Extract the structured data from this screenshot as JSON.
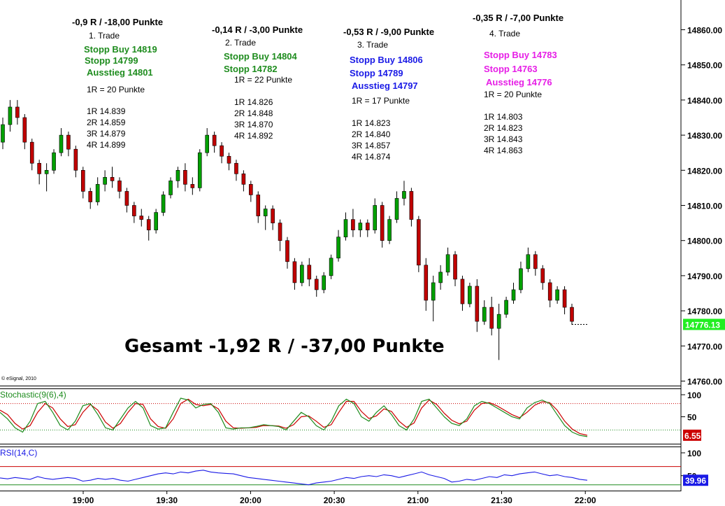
{
  "chart_data": {
    "type": "candlestick",
    "main": {
      "y_ticks": [
        "14860.00",
        "14850.00",
        "14840.00",
        "14830.00",
        "14820.00",
        "14810.00",
        "14800.00",
        "14790.00",
        "14780.00",
        "14770.00",
        "14760.00"
      ],
      "ylim": [
        14758,
        14868
      ],
      "last_price": "14776.13",
      "last_price_color": "#22ee22",
      "candles": [
        [
          14828,
          14835,
          14826,
          14833
        ],
        [
          14833,
          14840,
          14831,
          14838
        ],
        [
          14838,
          14840,
          14833,
          14835
        ],
        [
          14835,
          14836,
          14826,
          14828
        ],
        [
          14828,
          14829,
          14820,
          14822
        ],
        [
          14822,
          14823,
          14816,
          14819
        ],
        [
          14819,
          14822,
          14814,
          14820
        ],
        [
          14820,
          14826,
          14819,
          14825
        ],
        [
          14825,
          14832,
          14824,
          14830
        ],
        [
          14830,
          14831,
          14824,
          14826
        ],
        [
          14826,
          14827,
          14818,
          14820
        ],
        [
          14820,
          14821,
          14812,
          14814
        ],
        [
          14814,
          14815,
          14809,
          14811
        ],
        [
          14811,
          14818,
          14810,
          14816
        ],
        [
          14816,
          14820,
          14814,
          14818
        ],
        [
          14818,
          14821,
          14815,
          14817
        ],
        [
          14817,
          14818,
          14812,
          14814
        ],
        [
          14814,
          14815,
          14808,
          14810
        ],
        [
          14810,
          14811,
          14805,
          14807
        ],
        [
          14807,
          14809,
          14804,
          14806
        ],
        [
          14806,
          14807,
          14800,
          14803
        ],
        [
          14803,
          14809,
          14802,
          14808
        ],
        [
          14808,
          14814,
          14807,
          14813
        ],
        [
          14813,
          14818,
          14812,
          14817
        ],
        [
          14817,
          14821,
          14815,
          14820
        ],
        [
          14820,
          14822,
          14814,
          14816
        ],
        [
          14816,
          14818,
          14813,
          14815
        ],
        [
          14815,
          14826,
          14814,
          14825
        ],
        [
          14825,
          14832,
          14824,
          14830
        ],
        [
          14830,
          14831,
          14825,
          14827
        ],
        [
          14827,
          14828,
          14822,
          14824
        ],
        [
          14824,
          14825,
          14820,
          14822
        ],
        [
          14822,
          14823,
          14817,
          14819
        ],
        [
          14819,
          14820,
          14814,
          14816
        ],
        [
          14816,
          14817,
          14811,
          14813
        ],
        [
          14813,
          14814,
          14805,
          14807
        ],
        [
          14807,
          14810,
          14803,
          14809
        ],
        [
          14809,
          14810,
          14803,
          14805
        ],
        [
          14805,
          14806,
          14797,
          14800
        ],
        [
          14800,
          14801,
          14792,
          14794
        ],
        [
          14794,
          14795,
          14786,
          14788
        ],
        [
          14788,
          14794,
          14787,
          14793
        ],
        [
          14793,
          14795,
          14787,
          14789
        ],
        [
          14789,
          14790,
          14784,
          14786
        ],
        [
          14786,
          14791,
          14785,
          14790
        ],
        [
          14790,
          14796,
          14789,
          14795
        ],
        [
          14795,
          14803,
          14794,
          14801
        ],
        [
          14801,
          14808,
          14800,
          14806
        ],
        [
          14806,
          14809,
          14801,
          14803
        ],
        [
          14803,
          14806,
          14801,
          14805
        ],
        [
          14805,
          14806,
          14801,
          14803
        ],
        [
          14803,
          14812,
          14802,
          14810
        ],
        [
          14810,
          14811,
          14798,
          14800
        ],
        [
          14800,
          14807,
          14799,
          14806
        ],
        [
          14806,
          14814,
          14805,
          14812
        ],
        [
          14812,
          14817,
          14810,
          14814
        ],
        [
          14814,
          14815,
          14804,
          14806
        ],
        [
          14806,
          14807,
          14791,
          14793
        ],
        [
          14793,
          14795,
          14780,
          14783
        ],
        [
          14783,
          14790,
          14777,
          14788
        ],
        [
          14788,
          14793,
          14786,
          14791
        ],
        [
          14791,
          14798,
          14790,
          14796
        ],
        [
          14796,
          14797,
          14787,
          14789
        ],
        [
          14789,
          14790,
          14780,
          14782
        ],
        [
          14782,
          14788,
          14781,
          14787
        ],
        [
          14787,
          14789,
          14774,
          14777
        ],
        [
          14777,
          14783,
          14776,
          14781
        ],
        [
          14781,
          14784,
          14773,
          14775
        ],
        [
          14775,
          14782,
          14766,
          14779
        ],
        [
          14779,
          14784,
          14778,
          14783
        ],
        [
          14783,
          14788,
          14782,
          14786
        ],
        [
          14786,
          14794,
          14785,
          14792
        ],
        [
          14792,
          14798,
          14791,
          14796
        ],
        [
          14796,
          14797,
          14790,
          14792
        ],
        [
          14792,
          14793,
          14786,
          14788
        ],
        [
          14788,
          14789,
          14781,
          14783
        ],
        [
          14783,
          14787,
          14782,
          14786
        ],
        [
          14786,
          14787,
          14779,
          14781
        ],
        [
          14781,
          14782,
          14776,
          14777
        ]
      ]
    },
    "x_ticks": [
      "19:00",
      "19:30",
      "20:00",
      "20:30",
      "21:00",
      "21:30",
      "22:00"
    ],
    "stochastic": {
      "label": "Stochastic(9(6),4)",
      "y_ticks": [
        "100",
        "50"
      ],
      "levels": [
        80,
        20
      ],
      "last_value": "6.55",
      "k": [
        60,
        45,
        25,
        15,
        40,
        80,
        85,
        60,
        30,
        20,
        40,
        75,
        80,
        55,
        25,
        20,
        45,
        70,
        85,
        70,
        30,
        22,
        25,
        60,
        92,
        88,
        70,
        78,
        80,
        60,
        25,
        22,
        25,
        25,
        28,
        32,
        30,
        28,
        20,
        40,
        60,
        50,
        30,
        20,
        40,
        75,
        90,
        80,
        50,
        40,
        60,
        75,
        55,
        30,
        20,
        45,
        85,
        90,
        70,
        50,
        35,
        30,
        45,
        75,
        85,
        80,
        70,
        60,
        50,
        45,
        70,
        82,
        88,
        80,
        55,
        30,
        15,
        8,
        5
      ],
      "d": [
        65,
        55,
        35,
        22,
        30,
        60,
        80,
        70,
        45,
        28,
        32,
        60,
        78,
        65,
        38,
        24,
        35,
        60,
        80,
        78,
        45,
        28,
        24,
        45,
        80,
        90,
        78,
        75,
        78,
        68,
        40,
        25,
        24,
        25,
        26,
        30,
        30,
        29,
        24,
        32,
        50,
        52,
        40,
        26,
        32,
        60,
        85,
        85,
        62,
        46,
        52,
        68,
        62,
        40,
        26,
        36,
        70,
        88,
        78,
        58,
        42,
        34,
        40,
        65,
        80,
        82,
        75,
        65,
        55,
        48,
        60,
        76,
        84,
        82,
        65,
        40,
        22,
        12,
        8
      ]
    },
    "rsi": {
      "label": "RSI(14,C)",
      "y_ticks": [
        "100",
        "50"
      ],
      "levels": [
        70,
        30
      ],
      "last_value": "39.96",
      "values": [
        45,
        43,
        46,
        44,
        42,
        48,
        44,
        42,
        44,
        46,
        44,
        38,
        40,
        44,
        42,
        44,
        40,
        38,
        42,
        46,
        50,
        54,
        56,
        54,
        58,
        56,
        60,
        62,
        58,
        56,
        55,
        54,
        50,
        46,
        44,
        42,
        40,
        38,
        36,
        34,
        32,
        30,
        34,
        36,
        38,
        42,
        46,
        44,
        48,
        50,
        48,
        52,
        50,
        46,
        50,
        54,
        58,
        52,
        48,
        44,
        36,
        38,
        42,
        40,
        44,
        48,
        46,
        52,
        50,
        54,
        56,
        58,
        54,
        50,
        52,
        48,
        46,
        42,
        40
      ]
    },
    "annotations": [
      {
        "header": "-0,9 R / -18,00 Punkte",
        "trade": "1. Trade",
        "orders": [
          "Stopp Buy 14819",
          "Stopp 14799",
          "Ausstieg 14801"
        ],
        "color": "#1e8c1e",
        "risk": "1R = 20 Punkte",
        "targets": [
          "1R 14.839",
          "2R 14.859",
          "3R 14.879",
          "4R 14.899"
        ]
      },
      {
        "header": "-0,14 R / -3,00 Punkte",
        "trade": "2. Trade",
        "orders": [
          "Stopp Buy 14804",
          "Stopp 14782"
        ],
        "color": "#1e8c1e",
        "risk": "1R = 22 Punkte",
        "targets": [
          "1R 14.826",
          "2R 14.848",
          "3R 14.870",
          "4R 14.892"
        ]
      },
      {
        "header": "-0,53 R / -9,00 Punkte",
        "trade": "3. Trade",
        "orders": [
          "Stopp Buy 14806",
          "Stopp 14789",
          "Ausstieg 14797"
        ],
        "color": "#1a1ae6",
        "risk": "1R = 17 Punkte",
        "targets": [
          "1R 14.823",
          "2R 14.840",
          "3R 14.857",
          "4R 14.874"
        ]
      },
      {
        "header": "-0,35 R / -7,00 Punkte",
        "trade": "4. Trade",
        "orders": [
          "Stopp Buy 14783",
          "Stopp 14763",
          "Ausstieg 14776"
        ],
        "color": "#e61ee6",
        "risk": "1R = 20 Punkte",
        "targets": [
          "1R 14.803",
          "2R 14.823",
          "3R 14.843",
          "4R 14.863"
        ]
      }
    ],
    "total": "Gesamt -1,92 R / -37,00 Punkte",
    "copyright": "© eSignal, 2010"
  }
}
